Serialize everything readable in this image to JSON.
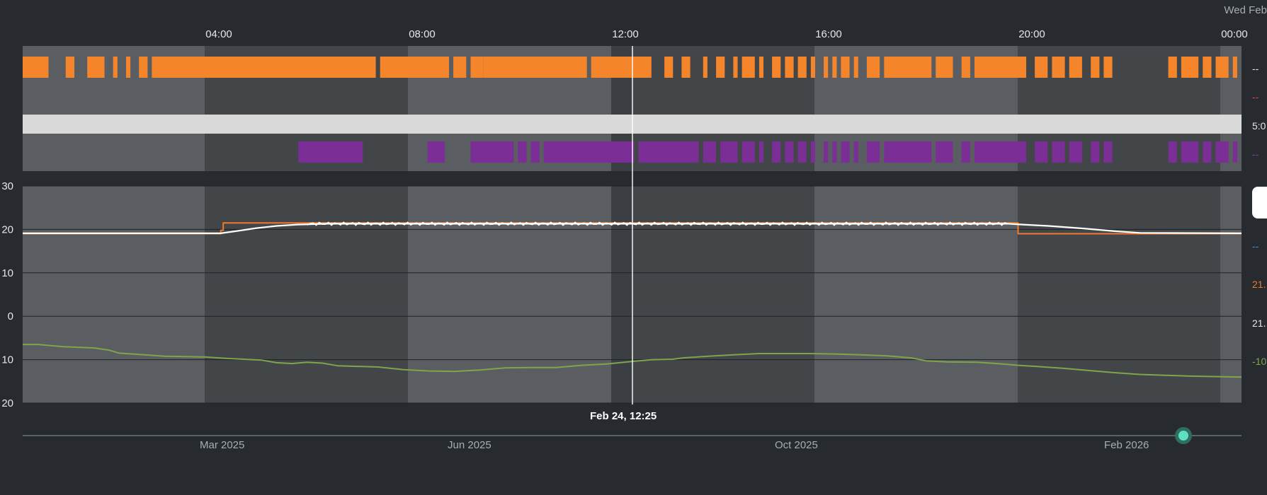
{
  "header": {
    "date_label": "Wed Feb"
  },
  "time_axis": {
    "ticks": [
      "04:00",
      "08:00",
      "12:00",
      "16:00",
      "20:00",
      "00:00"
    ]
  },
  "cursor": {
    "label": "Feb 24, 12:25"
  },
  "range_slider": {
    "labels": [
      "Mar 2025",
      "Jun 2025",
      "Oct 2025",
      "Feb 2026"
    ]
  },
  "right_labels": {
    "heating_state": "--",
    "heating_target": "--",
    "hvac_mode": "5:0",
    "hvac_action": "--",
    "humidity": "--",
    "target_temp": "21.",
    "current_temp": "21.",
    "outdoor_temp": "-10"
  },
  "colors": {
    "heating": "#f5852b",
    "active": "#7b2e96",
    "mode_band": "#d9d9d9",
    "target": "#f07a2a",
    "current": "#ffffff",
    "outdoor": "#7ea54a",
    "handle": "#5fe0c3"
  },
  "chart_data": [
    {
      "type": "timeline",
      "x_range": [
        "00:00",
        "24:00"
      ],
      "rows": [
        {
          "name": "",
          "color": "#f5852b",
          "segments": [
            [
              "00:00",
              "00:06"
            ],
            [
              "00:10",
              "00:12"
            ],
            [
              "00:15",
              "00:19"
            ],
            [
              "00:21",
              "00:22"
            ],
            [
              "00:24",
              "00:25"
            ],
            [
              "00:27",
              "00:29"
            ],
            [
              "00:30",
              "01:22"
            ],
            [
              "01:23",
              "01:39"
            ],
            [
              "01:40",
              "01:43"
            ],
            [
              "01:44",
              "01:47"
            ],
            [
              "01:47",
              "02:11"
            ],
            [
              "02:12",
              "02:26"
            ],
            [
              "02:29",
              "02:31"
            ],
            [
              "02:33",
              "02:35"
            ],
            [
              "02:38",
              "02:39"
            ],
            [
              "02:41",
              "02:43"
            ],
            [
              "02:45",
              "02:46"
            ],
            [
              "02:47",
              "02:50"
            ],
            [
              "02:51",
              "02:52"
            ],
            [
              "02:54",
              "02:56"
            ],
            [
              "02:57",
              "02:59"
            ],
            [
              "03:00",
              "03:02"
            ],
            [
              "03:03",
              "03:04"
            ],
            [
              "03:06",
              "03:07"
            ],
            [
              "03:08",
              "03:09"
            ],
            [
              "03:10",
              "03:12"
            ],
            [
              "03:13",
              "03:14"
            ],
            [
              "03:16",
              "03:19"
            ],
            [
              "03:20",
              "03:31"
            ],
            [
              "03:32",
              "03:36"
            ],
            [
              "03:38",
              "03:40"
            ],
            [
              "03:41",
              "03:53"
            ],
            [
              "03:55",
              "03:58"
            ],
            [
              "03:59",
              "04:02"
            ],
            [
              "04:03",
              "04:06"
            ],
            [
              "04:08",
              "04:10"
            ],
            [
              "04:11",
              "04:13"
            ],
            [
              "04:26",
              "04:28"
            ],
            [
              "04:29",
              "04:33"
            ],
            [
              "04:34",
              "04:36"
            ],
            [
              "04:37",
              "04:40"
            ],
            [
              "04:41",
              "04:42"
            ]
          ]
        },
        {
          "name": "",
          "color": "#7b2e96",
          "segments": [
            [
              "01:04",
              "01:19"
            ],
            [
              "01:34",
              "01:38"
            ],
            [
              "01:44",
              "01:54"
            ],
            [
              "01:55",
              "01:57"
            ],
            [
              "01:58",
              "02:00"
            ],
            [
              "02:01",
              "02:22"
            ],
            [
              "02:23",
              "02:37"
            ],
            [
              "02:38",
              "02:41"
            ],
            [
              "02:42",
              "02:46"
            ],
            [
              "02:47",
              "02:50"
            ],
            [
              "02:51",
              "02:52"
            ],
            [
              "02:54",
              "02:56"
            ],
            [
              "02:57",
              "02:59"
            ],
            [
              "03:00",
              "03:02"
            ],
            [
              "03:03",
              "03:04"
            ],
            [
              "03:06",
              "03:07"
            ],
            [
              "03:08",
              "03:09"
            ],
            [
              "03:10",
              "03:12"
            ],
            [
              "03:13",
              "03:14"
            ],
            [
              "03:16",
              "03:19"
            ],
            [
              "03:20",
              "03:31"
            ],
            [
              "03:32",
              "03:36"
            ],
            [
              "03:38",
              "03:40"
            ],
            [
              "03:41",
              "03:53"
            ],
            [
              "03:55",
              "03:58"
            ],
            [
              "03:59",
              "04:02"
            ],
            [
              "04:03",
              "04:06"
            ],
            [
              "04:08",
              "04:10"
            ],
            [
              "04:11",
              "04:13"
            ],
            [
              "04:26",
              "04:28"
            ],
            [
              "04:29",
              "04:33"
            ],
            [
              "04:34",
              "04:36"
            ],
            [
              "04:37",
              "04:40"
            ],
            [
              "04:41",
              "04:42"
            ]
          ]
        }
      ]
    },
    {
      "type": "line",
      "ylim": [
        -20,
        30
      ],
      "yticks": [
        30,
        20,
        10,
        0,
        -10,
        -20
      ],
      "ytick_labels": [
        "30",
        "20",
        "10",
        "0",
        "10",
        "20"
      ],
      "grid": true,
      "series": [
        {
          "name": "",
          "color": "#f07a2a",
          "step": true,
          "points": [
            [
              0.0,
              19
            ],
            [
              3.9,
              19
            ],
            [
              3.9,
              19.8
            ],
            [
              3.95,
              19.8
            ],
            [
              3.95,
              21.5
            ],
            [
              19.6,
              21.5
            ],
            [
              19.6,
              19
            ],
            [
              24,
              19
            ]
          ]
        },
        {
          "name": "",
          "color": "#ffffff",
          "step": false,
          "points": [
            [
              0,
              19.1
            ],
            [
              3.9,
              19.1
            ],
            [
              4.2,
              19.6
            ],
            [
              4.6,
              20.3
            ],
            [
              5,
              20.8
            ],
            [
              5.4,
              21.1
            ],
            [
              6,
              21.3
            ],
            [
              19.4,
              21.3
            ],
            [
              19.7,
              21.1
            ],
            [
              20.2,
              20.8
            ],
            [
              20.8,
              20.3
            ],
            [
              21.5,
              19.6
            ],
            [
              22,
              19.2
            ],
            [
              24,
              19.1
            ]
          ]
        },
        {
          "name": "",
          "color": "#7ea54a",
          "step": false,
          "points": [
            [
              0,
              -6.5
            ],
            [
              0.3,
              -6.5
            ],
            [
              0.8,
              -7
            ],
            [
              1.4,
              -7.3
            ],
            [
              1.7,
              -7.8
            ],
            [
              1.9,
              -8.5
            ],
            [
              2.3,
              -8.8
            ],
            [
              2.8,
              -9.2
            ],
            [
              3.6,
              -9.4
            ],
            [
              4.0,
              -9.7
            ],
            [
              4.7,
              -10.1
            ],
            [
              5.0,
              -10.7
            ],
            [
              5.3,
              -10.9
            ],
            [
              5.6,
              -10.6
            ],
            [
              5.9,
              -10.8
            ],
            [
              6.2,
              -11.4
            ],
            [
              7.0,
              -11.7
            ],
            [
              7.5,
              -12.3
            ],
            [
              8.0,
              -12.6
            ],
            [
              8.5,
              -12.7
            ],
            [
              9.0,
              -12.4
            ],
            [
              9.5,
              -11.9
            ],
            [
              10.0,
              -11.8
            ],
            [
              10.5,
              -11.8
            ],
            [
              11.0,
              -11.3
            ],
            [
              11.5,
              -11.0
            ],
            [
              12.0,
              -10.4
            ],
            [
              12.4,
              -10.0
            ],
            [
              12.8,
              -9.9
            ],
            [
              13.0,
              -9.6
            ],
            [
              13.5,
              -9.2
            ],
            [
              14.0,
              -8.9
            ],
            [
              14.5,
              -8.6
            ],
            [
              15.0,
              -8.6
            ],
            [
              15.5,
              -8.6
            ],
            [
              16.0,
              -8.7
            ],
            [
              16.5,
              -8.9
            ],
            [
              17.0,
              -9.1
            ],
            [
              17.5,
              -9.6
            ],
            [
              17.8,
              -10.3
            ],
            [
              18.2,
              -10.5
            ],
            [
              18.8,
              -10.6
            ],
            [
              19.3,
              -11.0
            ],
            [
              19.6,
              -11.3
            ],
            [
              20.0,
              -11.6
            ],
            [
              20.5,
              -12.0
            ],
            [
              21.0,
              -12.5
            ],
            [
              21.5,
              -13.0
            ],
            [
              22.0,
              -13.4
            ],
            [
              22.5,
              -13.6
            ],
            [
              23.0,
              -13.8
            ],
            [
              24,
              -14.0
            ]
          ]
        }
      ]
    }
  ]
}
